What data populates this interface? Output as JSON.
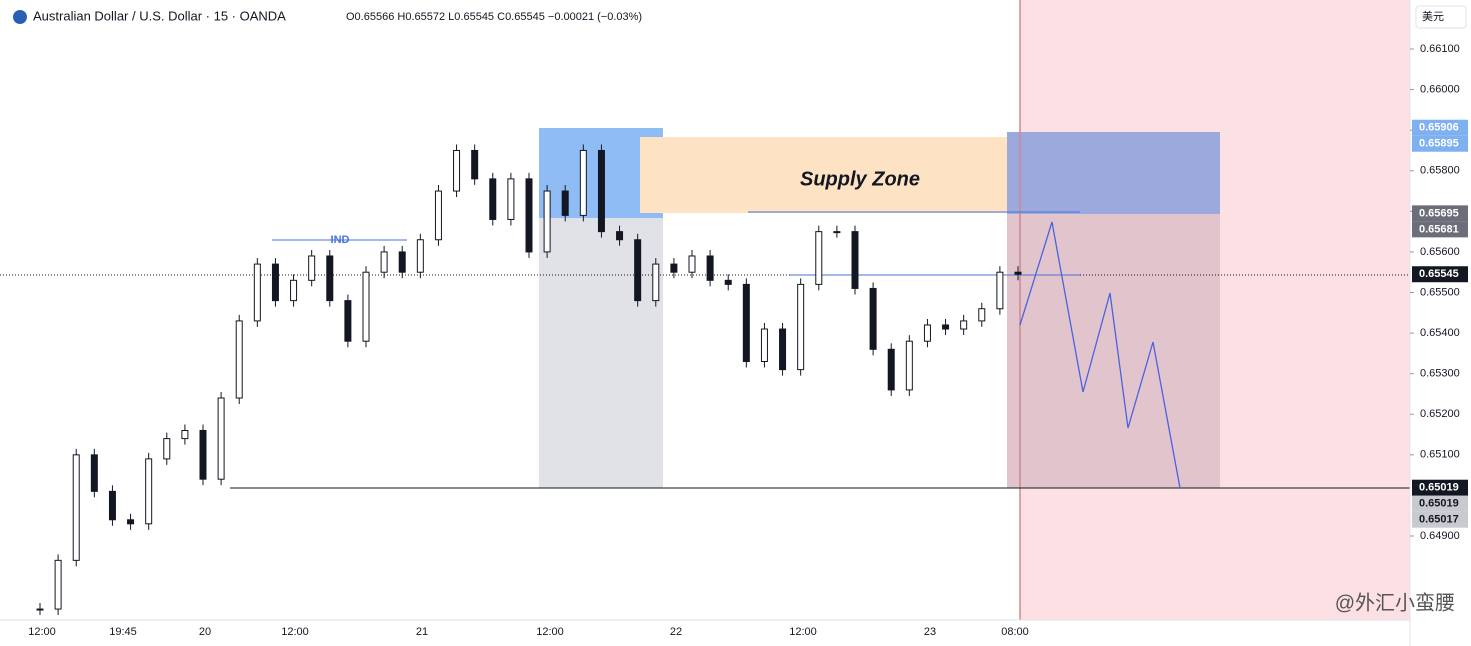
{
  "header": {
    "symbol": "Australian Dollar / U.S. Dollar · 15 · OANDA",
    "open": "O0.65566",
    "high": "H0.65572",
    "low": "L0.65545",
    "close": "C0.65545",
    "change": "−0.00021 (−0.03%)"
  },
  "currency_button": "美元",
  "price_axis": {
    "ticks": [
      {
        "value": 0.661,
        "label": "0.66100"
      },
      {
        "value": 0.66,
        "label": "0.66000"
      },
      {
        "value": 0.659,
        "label": "0.65900"
      },
      {
        "value": 0.658,
        "label": "0.65800"
      },
      {
        "value": 0.657,
        "label": "0.65700"
      },
      {
        "value": 0.656,
        "label": "0.65600"
      },
      {
        "value": 0.655,
        "label": "0.65500"
      },
      {
        "value": 0.654,
        "label": "0.65400"
      },
      {
        "value": 0.653,
        "label": "0.65300"
      },
      {
        "value": 0.652,
        "label": "0.65200"
      },
      {
        "value": 0.651,
        "label": "0.65100"
      },
      {
        "value": 0.649,
        "label": "0.64900"
      }
    ],
    "markers": [
      {
        "value": 0.65906,
        "label": "0.65906",
        "color": "#7fb0f0"
      },
      {
        "value": 0.65895,
        "label": "0.65895",
        "color": "#7fb0f0"
      },
      {
        "value": 0.65695,
        "label": "0.65695",
        "color": "#6b6e78"
      },
      {
        "value": 0.65681,
        "label": "0.65681",
        "color": "#6b6e78"
      },
      {
        "value": 0.65545,
        "label": "0.65545",
        "color": "#131722"
      },
      {
        "value": 0.65019,
        "label": "0.65019",
        "color": "#131722"
      },
      {
        "value": 0.65019,
        "label": "0.65019",
        "color": "#c8cad0"
      },
      {
        "value": 0.65017,
        "label": "0.65017",
        "color": "#c8cad0"
      }
    ]
  },
  "time_axis": [
    "12:00",
    "19:45",
    "20",
    "12:00",
    "21",
    "12:00",
    "22",
    "12:00",
    "23",
    "08:00"
  ],
  "annotations": {
    "ind": "IND",
    "supply_zone": "Supply Zone"
  },
  "watermark": "@外汇小蛮腰",
  "price_series": {
    "closes": [
      0.6472,
      0.6484,
      0.651,
      0.6501,
      0.6494,
      0.6493,
      0.6509,
      0.6514,
      0.6516,
      0.6504,
      0.6524,
      0.6543,
      0.6557,
      0.6548,
      0.6553,
      0.6559,
      0.6548,
      0.6538,
      0.6555,
      0.656,
      0.6555,
      0.6563,
      0.6575,
      0.6585,
      0.6578,
      0.6568,
      0.6578,
      0.656,
      0.6575,
      0.6569,
      0.6585,
      0.6565,
      0.6563,
      0.6548,
      0.6557,
      0.6555,
      0.6559,
      0.6553,
      0.6552,
      0.6533,
      0.6541,
      0.6531,
      0.6552,
      0.6565,
      0.6565,
      0.6551,
      0.6536,
      0.6526,
      0.6538,
      0.6542,
      0.6541,
      0.6543,
      0.6546,
      0.6555,
      0.65545
    ]
  }
}
